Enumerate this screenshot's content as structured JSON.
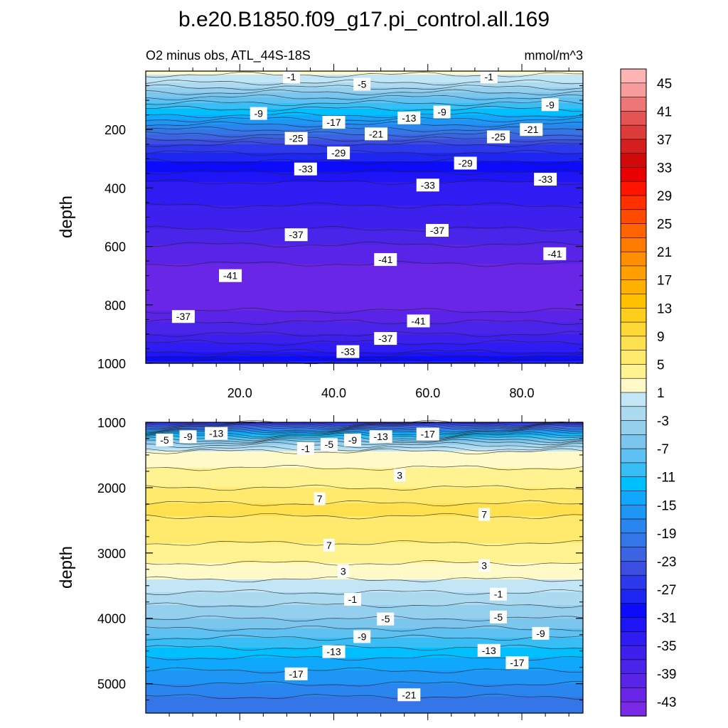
{
  "chart_data": {
    "type": "contour",
    "title": "b.e20.B1850.f09_g17.pi_control.all.169",
    "panels": [
      {
        "id": "upper",
        "subtitle_left": "O2 minus obs, ATL_44S-18S",
        "subtitle_right": "mmol/m^3",
        "ylabel": "depth",
        "ylim": [
          0,
          1000
        ],
        "xlim": [
          0,
          93
        ],
        "yticks": [
          {
            "value": 200,
            "label": "200"
          },
          {
            "value": 400,
            "label": "400"
          },
          {
            "value": 600,
            "label": "600"
          },
          {
            "value": 800,
            "label": "800"
          },
          {
            "value": 1000,
            "label": "1000"
          }
        ],
        "xticks": [
          {
            "value": 20,
            "label": "20.0"
          },
          {
            "value": 40,
            "label": "40.0"
          },
          {
            "value": 60,
            "label": "60.0"
          },
          {
            "value": 80,
            "label": "80.0"
          }
        ],
        "profile": [
          {
            "d": 0,
            "v": 2
          },
          {
            "d": 40,
            "v": -1
          },
          {
            "d": 90,
            "v": -7
          },
          {
            "d": 150,
            "v": -13
          },
          {
            "d": 200,
            "v": -19
          },
          {
            "d": 250,
            "v": -25
          },
          {
            "d": 310,
            "v": -29
          },
          {
            "d": 380,
            "v": -33
          },
          {
            "d": 460,
            "v": -35
          },
          {
            "d": 540,
            "v": -37
          },
          {
            "d": 620,
            "v": -40
          },
          {
            "d": 700,
            "v": -42
          },
          {
            "d": 780,
            "v": -43
          },
          {
            "d": 840,
            "v": -40
          },
          {
            "d": 900,
            "v": -37
          },
          {
            "d": 960,
            "v": -33
          },
          {
            "d": 1000,
            "v": -28
          }
        ],
        "contour_labels": [
          {
            "text": "-1",
            "x": 31,
            "d": 20
          },
          {
            "text": "-5",
            "x": 46,
            "d": 45
          },
          {
            "text": "-1",
            "x": 73,
            "d": 20
          },
          {
            "text": "-9",
            "x": 24,
            "d": 145
          },
          {
            "text": "-17",
            "x": 40,
            "d": 175
          },
          {
            "text": "-13",
            "x": 56,
            "d": 160
          },
          {
            "text": "-9",
            "x": 63,
            "d": 140
          },
          {
            "text": "-9",
            "x": 86,
            "d": 115
          },
          {
            "text": "-25",
            "x": 32,
            "d": 230
          },
          {
            "text": "-21",
            "x": 49,
            "d": 215
          },
          {
            "text": "-21",
            "x": 82,
            "d": 200
          },
          {
            "text": "-25",
            "x": 75,
            "d": 225
          },
          {
            "text": "-29",
            "x": 41,
            "d": 280
          },
          {
            "text": "-33",
            "x": 34,
            "d": 335
          },
          {
            "text": "-29",
            "x": 68,
            "d": 315
          },
          {
            "text": "-33",
            "x": 60,
            "d": 390
          },
          {
            "text": "-33",
            "x": 85,
            "d": 370
          },
          {
            "text": "-37",
            "x": 32,
            "d": 560
          },
          {
            "text": "-37",
            "x": 62,
            "d": 545
          },
          {
            "text": "-41",
            "x": 51,
            "d": 645
          },
          {
            "text": "-41",
            "x": 87,
            "d": 625
          },
          {
            "text": "-41",
            "x": 18,
            "d": 700
          },
          {
            "text": "-37",
            "x": 8,
            "d": 840
          },
          {
            "text": "-41",
            "x": 58,
            "d": 855
          },
          {
            "text": "-37",
            "x": 51,
            "d": 915
          },
          {
            "text": "-33",
            "x": 43,
            "d": 960
          }
        ]
      },
      {
        "id": "lower",
        "ylabel": "depth",
        "ylim": [
          1000,
          5450
        ],
        "xlim": [
          0,
          93
        ],
        "yticks": [
          {
            "value": 1000,
            "label": "1000"
          },
          {
            "value": 2000,
            "label": "2000"
          },
          {
            "value": 3000,
            "label": "3000"
          },
          {
            "value": 4000,
            "label": "4000"
          },
          {
            "value": 5000,
            "label": "5000"
          }
        ],
        "profile": [
          {
            "d": 1000,
            "v": -28
          },
          {
            "d": 1080,
            "v": -21
          },
          {
            "d": 1180,
            "v": -13
          },
          {
            "d": 1300,
            "v": -5
          },
          {
            "d": 1450,
            "v": 1
          },
          {
            "d": 1700,
            "v": 3
          },
          {
            "d": 2000,
            "v": 5
          },
          {
            "d": 2300,
            "v": 7.5
          },
          {
            "d": 2700,
            "v": 6
          },
          {
            "d": 3000,
            "v": 4
          },
          {
            "d": 3300,
            "v": 2
          },
          {
            "d": 3500,
            "v": 0
          },
          {
            "d": 3700,
            "v": -2
          },
          {
            "d": 4000,
            "v": -5
          },
          {
            "d": 4300,
            "v": -9
          },
          {
            "d": 4600,
            "v": -13
          },
          {
            "d": 4900,
            "v": -16
          },
          {
            "d": 5200,
            "v": -19
          },
          {
            "d": 5450,
            "v": -21
          }
        ],
        "contour_labels": [
          {
            "text": "-5",
            "x": 4,
            "d": 1270
          },
          {
            "text": "-9",
            "x": 9,
            "d": 1220
          },
          {
            "text": "-13",
            "x": 15,
            "d": 1170
          },
          {
            "text": "-1",
            "x": 34,
            "d": 1400
          },
          {
            "text": "-5",
            "x": 39,
            "d": 1340
          },
          {
            "text": "-9",
            "x": 44,
            "d": 1270
          },
          {
            "text": "-13",
            "x": 50,
            "d": 1220
          },
          {
            "text": "-17",
            "x": 60,
            "d": 1180
          },
          {
            "text": "3",
            "x": 54,
            "d": 1810
          },
          {
            "text": "7",
            "x": 37,
            "d": 2170
          },
          {
            "text": "7",
            "x": 72,
            "d": 2410
          },
          {
            "text": "7",
            "x": 39,
            "d": 2880
          },
          {
            "text": "3",
            "x": 42,
            "d": 3280
          },
          {
            "text": "3",
            "x": 72,
            "d": 3190
          },
          {
            "text": "-1",
            "x": 44,
            "d": 3710
          },
          {
            "text": "-1",
            "x": 75,
            "d": 3630
          },
          {
            "text": "-5",
            "x": 51,
            "d": 4010
          },
          {
            "text": "-5",
            "x": 75,
            "d": 3980
          },
          {
            "text": "-9",
            "x": 46,
            "d": 4280
          },
          {
            "text": "-9",
            "x": 84,
            "d": 4230
          },
          {
            "text": "-13",
            "x": 40,
            "d": 4510
          },
          {
            "text": "-13",
            "x": 73,
            "d": 4490
          },
          {
            "text": "-17",
            "x": 32,
            "d": 4850
          },
          {
            "text": "-17",
            "x": 79,
            "d": 4680
          },
          {
            "text": "-21",
            "x": 56,
            "d": 5170
          }
        ]
      }
    ],
    "colorbar": {
      "labels": [
        "45",
        "41",
        "37",
        "33",
        "29",
        "25",
        "21",
        "17",
        "13",
        "9",
        "5",
        "1",
        "-3",
        "-7",
        "-11",
        "-15",
        "-19",
        "-23",
        "-27",
        "-31",
        "-35",
        "-39",
        "-43"
      ],
      "levels_high_to_low": [
        47,
        45,
        43,
        41,
        39,
        37,
        35,
        33,
        31,
        29,
        27,
        25,
        23,
        21,
        19,
        17,
        15,
        13,
        11,
        9,
        7,
        5,
        3,
        1,
        -1,
        -3,
        -5,
        -7,
        -9,
        -11,
        -13,
        -15,
        -17,
        -19,
        -21,
        -23,
        -25,
        -27,
        -29,
        -31,
        -33,
        -35,
        -37,
        -39,
        -41,
        -43,
        -45
      ],
      "colors_top_to_bottom": [
        "#ffb4b4",
        "#f79c9c",
        "#ef7676",
        "#e65353",
        "#de3b3b",
        "#d61e1e",
        "#d00a0a",
        "#e80000",
        "#ff1400",
        "#ff3000",
        "#ff4b00",
        "#ff6400",
        "#ff7a00",
        "#ff8f00",
        "#ffa000",
        "#ffb000",
        "#ffc000",
        "#ffce1c",
        "#ffd838",
        "#ffe150",
        "#ffea6e",
        "#fff290",
        "#fffac8",
        "#c2e6f6",
        "#acdaf0",
        "#95cfee",
        "#7cc6ee",
        "#5ec1f2",
        "#38bef5",
        "#00bfff",
        "#10a8fc",
        "#1e96f5",
        "#2a86ee",
        "#3476e8",
        "#3c64e2",
        "#3c4ee0",
        "#2c38ec",
        "#1e26f2",
        "#0c0cfa",
        "#1e14f6",
        "#2f1cf2",
        "#3d20ee",
        "#4b24ea",
        "#5a24e8",
        "#6a26e6",
        "#7a2ae4"
      ]
    }
  }
}
